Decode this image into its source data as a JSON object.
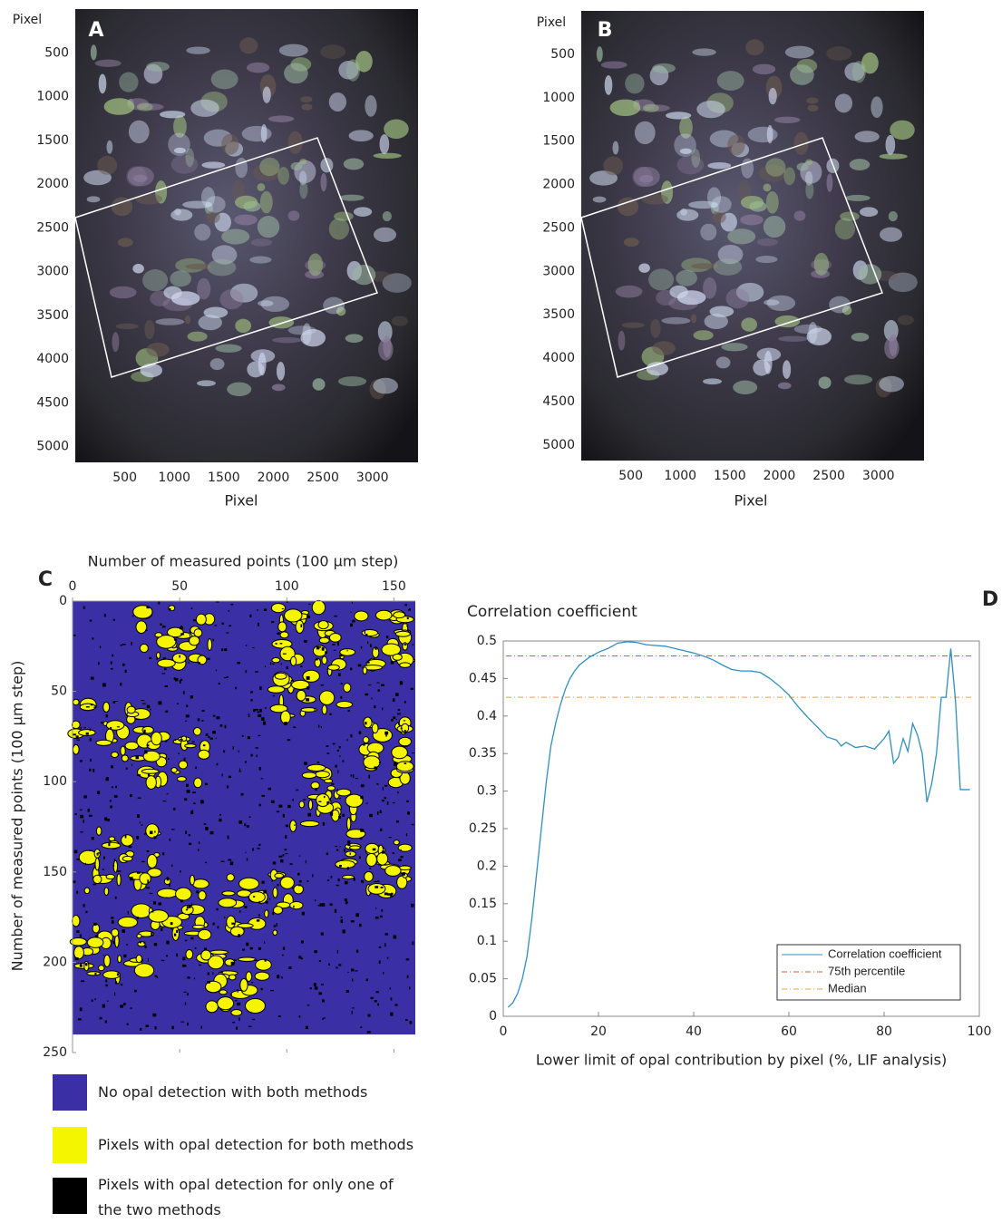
{
  "chart_data": [
    {
      "type": "image",
      "label": "A",
      "ylabel": "Pixel",
      "xlabel": "Pixel",
      "xlim": [
        0,
        3460
      ],
      "ylim": [
        0,
        5180
      ],
      "invert_y": true,
      "xticks": [
        500,
        1000,
        1500,
        2000,
        2500,
        3000
      ],
      "yticks": [
        500,
        1000,
        1500,
        2000,
        2500,
        3000,
        3500,
        4000,
        4500,
        5000
      ]
    },
    {
      "type": "image",
      "label": "B",
      "ylabel": "Pixel",
      "xlabel": "Pixel",
      "xlim": [
        0,
        3460
      ],
      "ylim": [
        0,
        5180
      ],
      "invert_y": true,
      "xticks": [
        500,
        1000,
        1500,
        2000,
        2500,
        3000
      ],
      "yticks": [
        500,
        1000,
        1500,
        2000,
        2500,
        3000,
        3500,
        4000,
        4500,
        5000
      ]
    },
    {
      "type": "map",
      "label": "C",
      "xlabel": "Number of measured points (100 µm step)",
      "ylabel": "Number of measured points (100 µm step)",
      "xlim": [
        0,
        160
      ],
      "ylim": [
        0,
        250
      ],
      "invert_y": true,
      "xticks": [
        0,
        50,
        100,
        150
      ],
      "yticks": [
        0,
        50,
        100,
        150,
        200,
        250
      ],
      "legend": [
        {
          "name": "No opal detection with both methods",
          "color": "#3b2fa6"
        },
        {
          "name": "Pixels with opal detection for both methods",
          "color": "#f5f500"
        },
        {
          "name": "Pixels with opal detection for only one of the two methods",
          "color": "#000000"
        }
      ]
    },
    {
      "type": "line",
      "label": "D",
      "title": "Correlation coefficient",
      "xlabel": "Lower limit of opal contribution by pixel (%, LIF analysis)",
      "xlim": [
        0,
        100
      ],
      "ylim": [
        0,
        0.5
      ],
      "xticks": [
        0,
        20,
        40,
        60,
        80,
        100
      ],
      "yticks": [
        0,
        0.05,
        0.1,
        0.15,
        0.2,
        0.25,
        0.3,
        0.35,
        0.4,
        0.45,
        0.5
      ],
      "legend": "lower right",
      "x": [
        1,
        2,
        3,
        4,
        5,
        6,
        7,
        8,
        9,
        10,
        11,
        12,
        13,
        14,
        15,
        16,
        18,
        20,
        22,
        24,
        26,
        28,
        30,
        32,
        34,
        36,
        38,
        40,
        42,
        44,
        46,
        48,
        50,
        52,
        54,
        56,
        58,
        60,
        62,
        64,
        66,
        68,
        70,
        71,
        72,
        74,
        76,
        78,
        80,
        81,
        82,
        83,
        84,
        85,
        86,
        87,
        88,
        89,
        90,
        91,
        92,
        93,
        94,
        95,
        96,
        97,
        98
      ],
      "series": [
        {
          "name": "Correlation coefficient",
          "color": "#2f8fc4",
          "values": [
            0.012,
            0.018,
            0.03,
            0.05,
            0.08,
            0.13,
            0.19,
            0.25,
            0.31,
            0.36,
            0.39,
            0.415,
            0.435,
            0.45,
            0.46,
            0.468,
            0.478,
            0.485,
            0.49,
            0.497,
            0.499,
            0.498,
            0.495,
            0.494,
            0.493,
            0.49,
            0.487,
            0.484,
            0.48,
            0.475,
            0.468,
            0.462,
            0.46,
            0.46,
            0.458,
            0.45,
            0.44,
            0.428,
            0.412,
            0.398,
            0.385,
            0.372,
            0.368,
            0.36,
            0.365,
            0.358,
            0.36,
            0.356,
            0.37,
            0.38,
            0.337,
            0.345,
            0.37,
            0.353,
            0.39,
            0.375,
            0.35,
            0.285,
            0.31,
            0.35,
            0.425,
            0.425,
            0.49,
            0.42,
            0.302,
            0.302,
            0.302
          ]
        }
      ],
      "hlines": [
        {
          "name": "75th percentile",
          "value": 0.48,
          "color": "#d9622b"
        },
        {
          "name": "Median",
          "value": 0.425,
          "color": "#f0a030"
        }
      ]
    }
  ]
}
